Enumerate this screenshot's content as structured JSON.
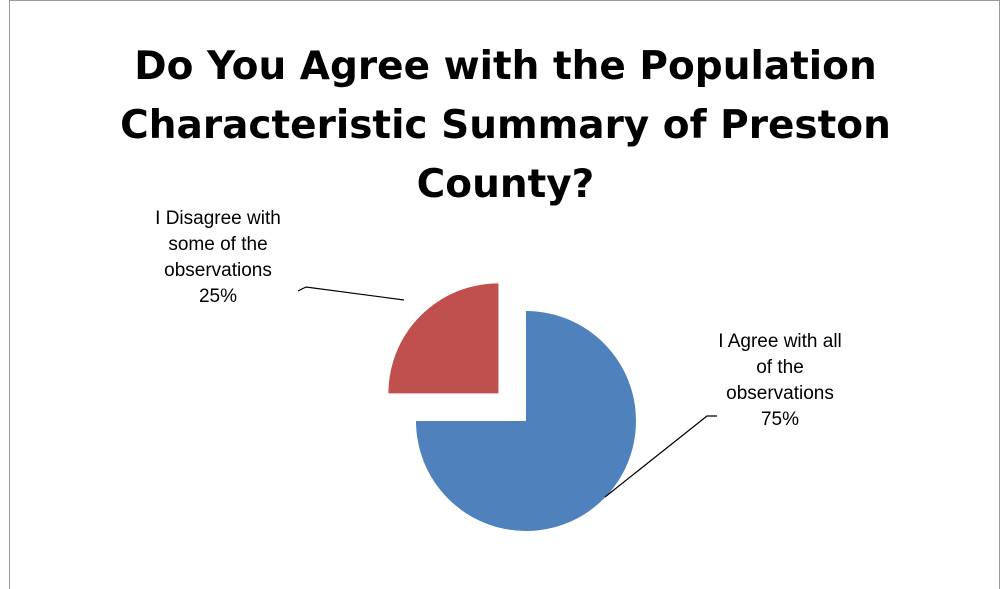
{
  "chart_data": {
    "type": "pie",
    "title_lines": [
      "Do You Agree with the Population",
      "Characteristic Summary of Preston",
      "County?"
    ],
    "slices": [
      {
        "label_lines": [
          "I Agree with all",
          "of the",
          "observations"
        ],
        "percent_label": "75%",
        "value": 75,
        "color": "#4f81bd",
        "exploded": false
      },
      {
        "label_lines": [
          "I Disagree with",
          "some of the",
          "observations"
        ],
        "percent_label": "25%",
        "value": 25,
        "color": "#c0504d",
        "exploded": true
      }
    ],
    "legend": "none",
    "start_angle": "12 o'clock",
    "direction": "clockwise"
  }
}
